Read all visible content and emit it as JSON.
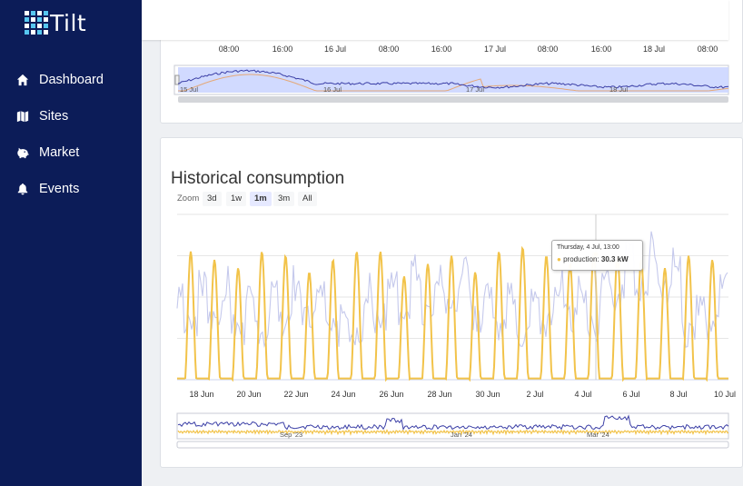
{
  "app": {
    "name": "Tilt"
  },
  "sidebar": {
    "items": [
      {
        "label": "Dashboard",
        "icon": "home-icon"
      },
      {
        "label": "Sites",
        "icon": "map-icon"
      },
      {
        "label": "Market",
        "icon": "piggy-bank-icon"
      },
      {
        "label": "Events",
        "icon": "bell-icon"
      }
    ]
  },
  "upper_chart": {
    "x_ticks": [
      "08:00",
      "16:00",
      "16 Jul",
      "08:00",
      "16:00",
      "17 Jul",
      "08:00",
      "16:00",
      "18 Jul",
      "08:00"
    ],
    "navigator_labels": [
      "15 Jul",
      "16 Jul",
      "17 Jul",
      "18 Jul"
    ],
    "colors": {
      "selection": "#ccd6ff",
      "series_primary": "#3b3fa6",
      "series_secondary": "#e5a877"
    }
  },
  "historical": {
    "title": "Historical consumption",
    "zoom_label": "Zoom",
    "zoom_buttons": [
      {
        "label": "3d",
        "selected": false
      },
      {
        "label": "1w",
        "selected": false
      },
      {
        "label": "1m",
        "selected": true
      },
      {
        "label": "3m",
        "selected": false
      },
      {
        "label": "All",
        "selected": false
      }
    ],
    "tooltip": {
      "date": "Thursday, 4 Jul, 13:00",
      "series": "production",
      "value": "30.3 kW"
    },
    "navigator_labels": [
      "Sep '23",
      "Jan '24",
      "Mar '24"
    ],
    "colors": {
      "production": "#f2c34a",
      "consumption": "#c5c9ec",
      "navigator_consumption": "#3b3fa6"
    }
  },
  "chart_data": {
    "type": "line",
    "x_ticks": [
      "18 Jun",
      "20 Jun",
      "22 Jun",
      "24 Jun",
      "26 Jun",
      "28 Jun",
      "30 Jun",
      "2 Jul",
      "4 Jul",
      "6 Jul",
      "8 Jul",
      "10 Jul"
    ],
    "series": [
      {
        "name": "production",
        "unit": "kW",
        "daily_peak": [
          31,
          29,
          27,
          31,
          30,
          26,
          29,
          31,
          31,
          25,
          28,
          30,
          26,
          31,
          32,
          30,
          28,
          31,
          30,
          29,
          27,
          30,
          29,
          31,
          28
        ]
      },
      {
        "name": "consumption"
      }
    ],
    "tooltip_point": {
      "x": "Thursday, 4 Jul, 13:00",
      "series": "production",
      "y": 30.3,
      "unit": "kW"
    }
  }
}
